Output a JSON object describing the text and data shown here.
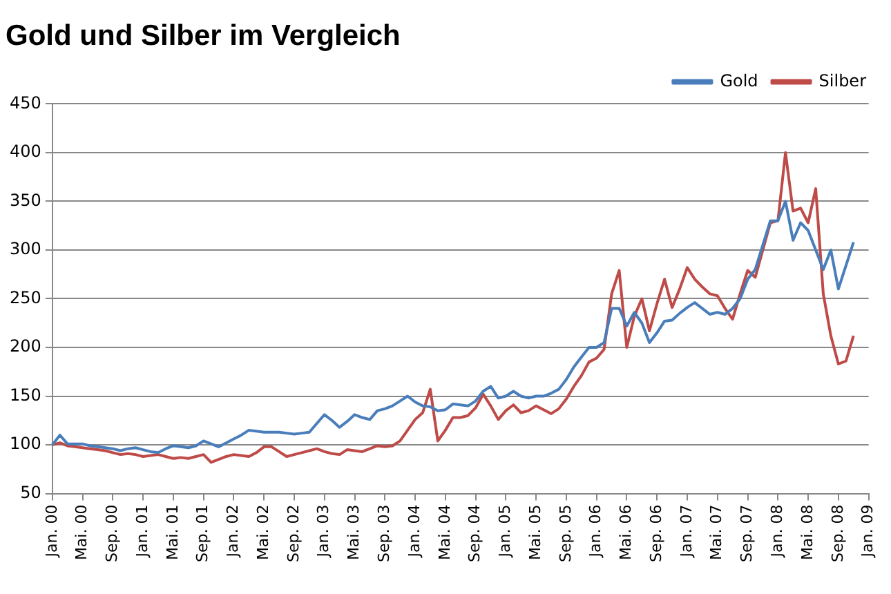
{
  "chart_data": {
    "type": "line",
    "title": "Gold und Silber im Vergleich",
    "categories": [
      "Jan. 00",
      null,
      null,
      null,
      "Mai. 00",
      null,
      null,
      null,
      "Sep. 00",
      null,
      null,
      null,
      "Jan. 01",
      null,
      null,
      null,
      "Mai. 01",
      null,
      null,
      null,
      "Sep. 01",
      null,
      null,
      null,
      "Jan. 02",
      null,
      null,
      null,
      "Mai. 02",
      null,
      null,
      null,
      "Sep. 02",
      null,
      null,
      null,
      "Jan. 03",
      null,
      null,
      null,
      "Mai. 03",
      null,
      null,
      null,
      "Sep. 03",
      null,
      null,
      null,
      "Jan. 04",
      null,
      null,
      null,
      "Mai. 04",
      null,
      null,
      null,
      "Sep. 04",
      null,
      null,
      null,
      "Jan. 05",
      null,
      null,
      null,
      "Mai. 05",
      null,
      null,
      null,
      "Sep. 05",
      null,
      null,
      null,
      "Jan. 06",
      null,
      null,
      null,
      "Mai. 06",
      null,
      null,
      null,
      "Sep. 06",
      null,
      null,
      null,
      "Jan. 07",
      null,
      null,
      null,
      "Mai. 07",
      null,
      null,
      null,
      "Sep. 07",
      null,
      null,
      null,
      "Jan. 08",
      null,
      null,
      null,
      "Mai. 08",
      null,
      null,
      null,
      "Sep. 08",
      null,
      null,
      null,
      "Jan. 09"
    ],
    "series": [
      {
        "name": "Gold",
        "color": "#4a7ebb",
        "values": [
          100,
          110,
          101,
          101,
          101,
          99,
          98,
          97,
          96,
          94,
          96,
          97,
          95,
          93,
          92,
          96,
          99,
          98,
          97,
          99,
          104,
          101,
          98,
          102,
          106,
          110,
          115,
          114,
          113,
          113,
          113,
          112,
          111,
          112,
          113,
          122,
          131,
          125,
          118,
          124,
          131,
          128,
          126,
          135,
          137,
          140,
          145,
          150,
          144,
          140,
          139,
          135,
          136,
          142,
          141,
          140,
          145,
          155,
          160,
          148,
          150,
          155,
          150,
          148,
          150,
          150,
          153,
          157,
          167,
          180,
          190,
          200,
          200,
          205,
          240,
          240,
          222,
          236,
          225,
          205,
          215,
          227,
          228,
          235,
          241,
          246,
          240,
          234,
          236,
          234,
          240,
          250,
          270,
          280,
          305,
          330,
          330,
          350,
          310,
          328,
          320,
          300,
          280,
          300,
          260,
          284,
          308,
          null,
          null
        ]
      },
      {
        "name": "Silber",
        "color": "#be4b48",
        "values": [
          100,
          102,
          99,
          98,
          97,
          96,
          95,
          94,
          92,
          90,
          91,
          90,
          88,
          89,
          90,
          88,
          86,
          87,
          86,
          88,
          90,
          82,
          85,
          88,
          90,
          89,
          88,
          92,
          98,
          98,
          93,
          88,
          90,
          92,
          94,
          96,
          93,
          91,
          90,
          95,
          94,
          93,
          96,
          99,
          98,
          99,
          104,
          115,
          126,
          133,
          157,
          104,
          115,
          128,
          128,
          130,
          138,
          152,
          140,
          126,
          135,
          141,
          133,
          135,
          140,
          136,
          132,
          137,
          147,
          160,
          171,
          185,
          189,
          198,
          255,
          279,
          200,
          232,
          250,
          217,
          245,
          270,
          241,
          260,
          282,
          270,
          262,
          255,
          253,
          240,
          229,
          255,
          279,
          272,
          300,
          328,
          330,
          400,
          340,
          343,
          328,
          363,
          255,
          212,
          183,
          186,
          212,
          null,
          null
        ]
      }
    ],
    "ylim": [
      50,
      450
    ],
    "yticks": [
      50,
      100,
      150,
      200,
      250,
      300,
      350,
      400,
      450
    ],
    "grid": "y",
    "legend": "top right",
    "marker": "none",
    "line_style": "solid"
  }
}
